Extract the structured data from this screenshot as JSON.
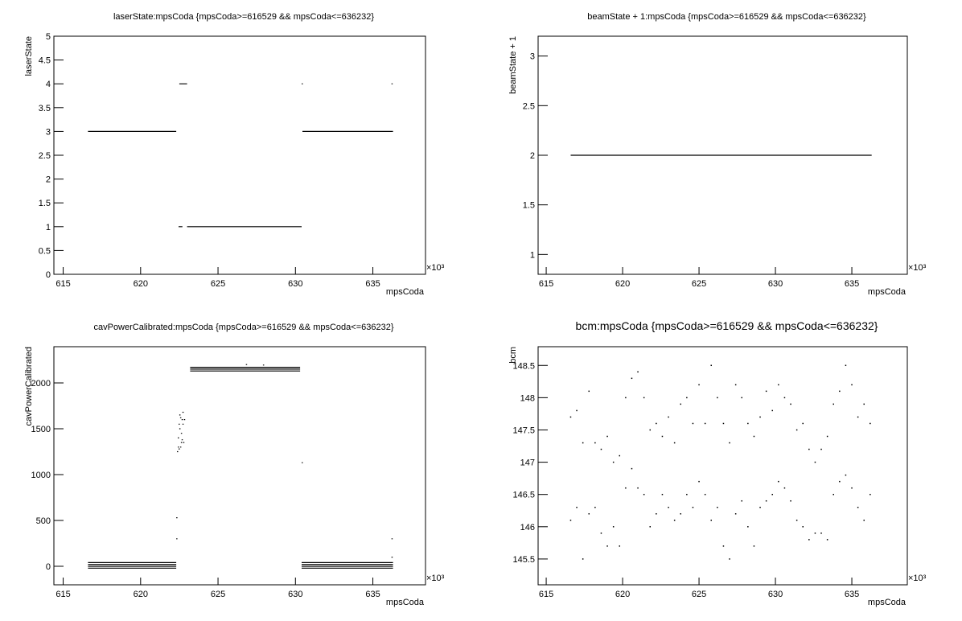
{
  "chart_data": [
    {
      "type": "line",
      "title": "laserState:mpsCoda {mpsCoda>=616529 && mpsCoda<=636232}",
      "x_label": "mpsCoda",
      "y_label": "laserState",
      "x_multiplier": "×10³",
      "xlim": [
        614.4,
        638.4
      ],
      "xticks": [
        615,
        620,
        625,
        630,
        635
      ],
      "ylim": [
        0,
        5
      ],
      "yticks": [
        0,
        0.5,
        1,
        1.5,
        2,
        2.5,
        3,
        3.5,
        4,
        4.5,
        5
      ],
      "series": [
        {
          "color": "#000000",
          "x": [
            616.6,
            622.3,
            null,
            622.5,
            623.0,
            null,
            622.45,
            622.7,
            null,
            623.0,
            630.4,
            null,
            630.4,
            null,
            630.45,
            636.3,
            null,
            636.2
          ],
          "values": [
            3,
            3,
            null,
            4,
            4,
            null,
            1,
            1,
            null,
            1,
            1,
            null,
            4,
            null,
            3,
            3,
            null,
            4
          ]
        }
      ]
    },
    {
      "type": "line",
      "title": "beamState + 1:mpsCoda {mpsCoda>=616529 && mpsCoda<=636232}",
      "x_label": "mpsCoda",
      "y_label": "beamState + 1",
      "x_multiplier": "×10³",
      "xlim": [
        614.47,
        638.63
      ],
      "xticks": [
        615,
        620,
        625,
        630,
        635
      ],
      "ylim": [
        0.8,
        3.2
      ],
      "yticks": [
        1,
        1.5,
        2,
        2.5,
        3
      ],
      "series": [
        {
          "color": "#000000",
          "x": [
            616.6,
            636.3
          ],
          "values": [
            2,
            2
          ]
        }
      ]
    },
    {
      "type": "line",
      "title": "cavPowerCalibrated:mpsCoda {mpsCoda>=616529 && mpsCoda<=636232}",
      "x_label": "mpsCoda",
      "y_label": "cavPowerCalibrated",
      "x_multiplier": "×10³",
      "xlim": [
        614.4,
        638.4
      ],
      "xticks": [
        615,
        620,
        625,
        630,
        635
      ],
      "ylim": [
        -202,
        2395
      ],
      "yticks": [
        0,
        500,
        1000,
        1500,
        2000
      ],
      "series": [
        {
          "color": "#000000",
          "x": [
            616.6,
            622.3,
            null,
            616.6,
            622.3,
            null,
            616.6,
            622.3,
            null,
            616.6,
            622.3,
            null,
            630.4,
            636.3,
            null,
            630.4,
            636.3,
            null,
            630.4,
            636.3,
            null,
            630.4,
            636.3,
            null,
            623.2,
            630.3,
            null,
            623.2,
            630.3,
            null,
            623.2,
            630.3,
            null,
            622.3,
            null,
            622.3,
            null,
            630.4,
            null,
            636.2,
            null,
            636.2,
            null,
            626.8,
            null,
            627.9,
            null,
            622.35,
            null,
            622.4,
            null,
            622.45,
            null,
            622.5,
            null,
            622.55,
            null,
            622.6,
            null,
            622.65,
            null,
            622.7,
            null,
            622.75,
            null,
            622.4,
            null,
            622.5,
            null,
            622.6,
            null,
            622.7,
            null,
            622.8,
            null,
            622.45,
            null,
            622.55,
            null,
            622.65
          ],
          "values": [
            40,
            40,
            null,
            20,
            20,
            null,
            0,
            0,
            null,
            -20,
            -20,
            null,
            40,
            40,
            null,
            20,
            20,
            null,
            0,
            0,
            null,
            -20,
            -20,
            null,
            2170,
            2170,
            null,
            2150,
            2150,
            null,
            2130,
            2130,
            null,
            530,
            null,
            300,
            null,
            1130,
            null,
            300,
            null,
            100,
            null,
            2200,
            null,
            2195,
            null,
            1250,
            null,
            1400,
            null,
            1550,
            null,
            1650,
            null,
            1300,
            null,
            1450,
            null,
            1600,
            null,
            1680,
            null,
            1350,
            null,
            1300,
            null,
            1500,
            null,
            1350,
            null,
            1550,
            null,
            1600,
            null,
            1280,
            null,
            1620,
            null,
            1380
          ]
        }
      ]
    },
    {
      "type": "scatter",
      "title": "bcm:mpsCoda {mpsCoda>=616529 && mpsCoda<=636232}",
      "x_label": "mpsCoda",
      "y_label": "bcm",
      "x_multiplier": "×10³",
      "xlim": [
        614.47,
        638.63
      ],
      "xticks": [
        615,
        620,
        625,
        630,
        635
      ],
      "ylim": [
        145.1,
        148.79
      ],
      "yticks": [
        145.5,
        146,
        146.5,
        147,
        147.5,
        148,
        148.5
      ],
      "series": [
        {
          "color": "#000000",
          "x": [
            616.6,
            616.6,
            617.0,
            617.0,
            617.4,
            617.4,
            617.8,
            617.8,
            618.2,
            618.2,
            618.6,
            618.6,
            619.0,
            619.0,
            619.4,
            619.4,
            619.8,
            619.8,
            620.2,
            620.2,
            620.6,
            620.6,
            621.0,
            621.0,
            621.4,
            621.4,
            621.8,
            621.8,
            622.2,
            622.2,
            622.6,
            622.6,
            623.0,
            623.0,
            623.4,
            623.4,
            623.8,
            623.8,
            624.2,
            624.2,
            624.6,
            624.6,
            625.0,
            625.0,
            625.4,
            625.4,
            625.8,
            625.8,
            626.2,
            626.2,
            626.6,
            626.6,
            627.0,
            627.0,
            627.4,
            627.4,
            627.8,
            627.8,
            628.2,
            628.2,
            628.6,
            628.6,
            629.0,
            629.0,
            629.4,
            629.4,
            629.8,
            629.8,
            630.2,
            630.2,
            630.6,
            630.6,
            631.0,
            631.0,
            631.4,
            631.4,
            631.8,
            631.8,
            632.2,
            632.2,
            632.6,
            632.6,
            633.0,
            633.0,
            633.4,
            633.4,
            633.8,
            633.8,
            634.2,
            634.2,
            634.6,
            634.6,
            635.0,
            635.0,
            635.4,
            635.4,
            635.8,
            635.8,
            636.2,
            636.2
          ],
          "values": [
            146.1,
            147.7,
            146.3,
            147.8,
            145.5,
            147.3,
            146.2,
            148.1,
            146.3,
            147.3,
            145.9,
            147.2,
            145.7,
            147.4,
            146.0,
            147.0,
            145.7,
            147.1,
            146.6,
            148.0,
            146.9,
            148.3,
            146.6,
            148.4,
            146.5,
            148.0,
            146.0,
            147.5,
            146.2,
            147.6,
            146.5,
            147.4,
            146.3,
            147.7,
            146.1,
            147.3,
            146.2,
            147.9,
            146.5,
            148.0,
            146.3,
            147.6,
            146.7,
            148.2,
            146.5,
            147.6,
            146.1,
            148.5,
            146.3,
            148.0,
            145.7,
            147.6,
            145.5,
            147.3,
            146.2,
            148.2,
            146.4,
            148.0,
            146.0,
            147.6,
            145.7,
            147.4,
            146.3,
            147.7,
            146.4,
            148.1,
            146.5,
            147.8,
            146.7,
            148.2,
            146.6,
            148.0,
            146.4,
            147.9,
            146.1,
            147.5,
            146.0,
            147.6,
            145.8,
            147.2,
            145.9,
            147.0,
            145.9,
            147.2,
            145.8,
            147.4,
            146.5,
            147.9,
            146.7,
            148.1,
            146.8,
            148.5,
            146.6,
            148.2,
            146.3,
            147.7,
            146.1,
            147.9,
            146.5,
            147.6
          ]
        }
      ]
    }
  ]
}
